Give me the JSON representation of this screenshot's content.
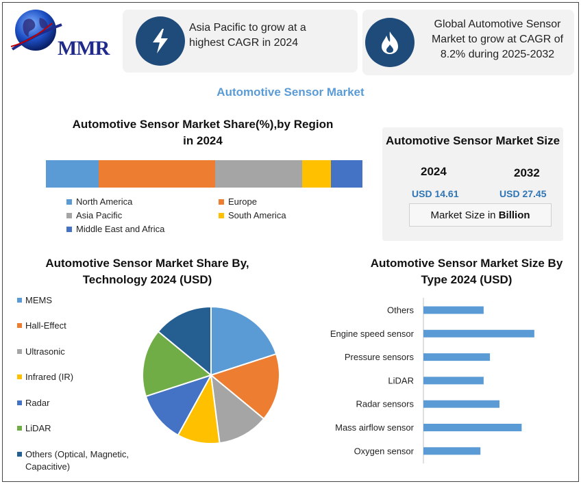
{
  "brand": {
    "logo_text": "MMR"
  },
  "cards": [
    {
      "icon": "lightning-icon",
      "text_lines": [
        "Asia Pacific to grow at a",
        "highest CAGR in 2024"
      ]
    },
    {
      "icon": "flame-icon",
      "text_lines": [
        "Global Automotive Sensor",
        "Market to grow at CAGR of",
        "8.2% during 2025-2032"
      ]
    }
  ],
  "main_title": "Automotive Sensor Market",
  "market_size": {
    "title": "Automotive Sensor Market Size",
    "years": [
      "2024",
      "2032"
    ],
    "values": [
      "USD 14.61",
      "USD 27.45"
    ],
    "note_prefix": "Market Size in ",
    "note_bold": "Billion"
  },
  "colors": {
    "north_america": "#5b9bd5",
    "europe": "#ed7d31",
    "asia_pacific": "#a5a5a5",
    "south_america": "#ffc000",
    "mea": "#4472c4",
    "lidar": "#70ad47",
    "others_tech": "#255e91",
    "bar": "#5b9bd5",
    "title_blue": "#5b9bd5"
  },
  "chart_data": [
    {
      "type": "bar",
      "orientation": "horizontal-stacked",
      "title_lines": [
        "Automotive Sensor Market Share(%),by Region",
        "in 2024"
      ],
      "categories": [
        "North America",
        "Europe",
        "Asia Pacific",
        "South America",
        "Middle East and Africa"
      ],
      "values": [
        16.7,
        36.7,
        27.5,
        9.1,
        10.0
      ],
      "legend": "bottom"
    },
    {
      "type": "pie",
      "title_lines": [
        "Automotive Sensor Market  Share By,",
        "Technology  2024  (USD)"
      ],
      "categories": [
        "MEMS",
        "Hall-Effect",
        "Ultrasonic",
        "Infrared (IR)",
        "Radar",
        "LiDAR",
        "Others (Optical, Magnetic, Capacitive)"
      ],
      "values": [
        20,
        16,
        12,
        10,
        12,
        16,
        14
      ],
      "legend": "left"
    },
    {
      "type": "bar",
      "orientation": "horizontal",
      "title_lines": [
        "Automotive Sensor Market Size By",
        "Type 2024  (USD)"
      ],
      "categories": [
        "Others",
        "Engine speed sensor",
        "Pressure sensors",
        "LiDAR",
        "Radar sensors",
        "Mass airflow sensor",
        "Oxygen sensor"
      ],
      "values": [
        1.9,
        3.5,
        2.1,
        1.9,
        2.4,
        3.1,
        1.8
      ],
      "xlim": [
        0,
        4
      ],
      "grid": false
    }
  ]
}
